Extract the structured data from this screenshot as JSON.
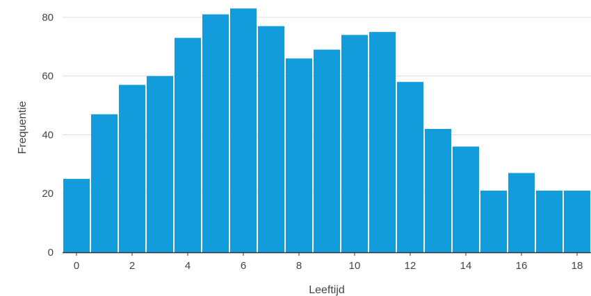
{
  "chart_data": {
    "type": "bar",
    "title": "",
    "xlabel": "Leeftijd",
    "ylabel": "Frequentie",
    "categories": [
      0,
      1,
      2,
      3,
      4,
      5,
      6,
      7,
      8,
      9,
      10,
      11,
      12,
      13,
      14,
      15,
      16,
      17,
      18
    ],
    "values": [
      25,
      47,
      57,
      60,
      73,
      81,
      83,
      77,
      66,
      69,
      74,
      75,
      58,
      42,
      36,
      21,
      27,
      21,
      21
    ],
    "xlim": [
      -0.5,
      18.5
    ],
    "ylim": [
      0,
      84
    ],
    "xticks": [
      0,
      2,
      4,
      6,
      8,
      10,
      12,
      14,
      16,
      18
    ],
    "xtick_labels": [
      "0",
      "2",
      "4",
      "6",
      "8",
      "10",
      "12",
      "14",
      "16",
      "18"
    ],
    "yticks": [
      0,
      20,
      40,
      60,
      80
    ],
    "ytick_labels": [
      "0",
      "20",
      "40",
      "60",
      "80"
    ],
    "grid": true,
    "legend": "none",
    "colors": {
      "bar": "#139cdb",
      "grid": "#dcdcdc",
      "axis": "#333333",
      "text": "#444444"
    }
  }
}
